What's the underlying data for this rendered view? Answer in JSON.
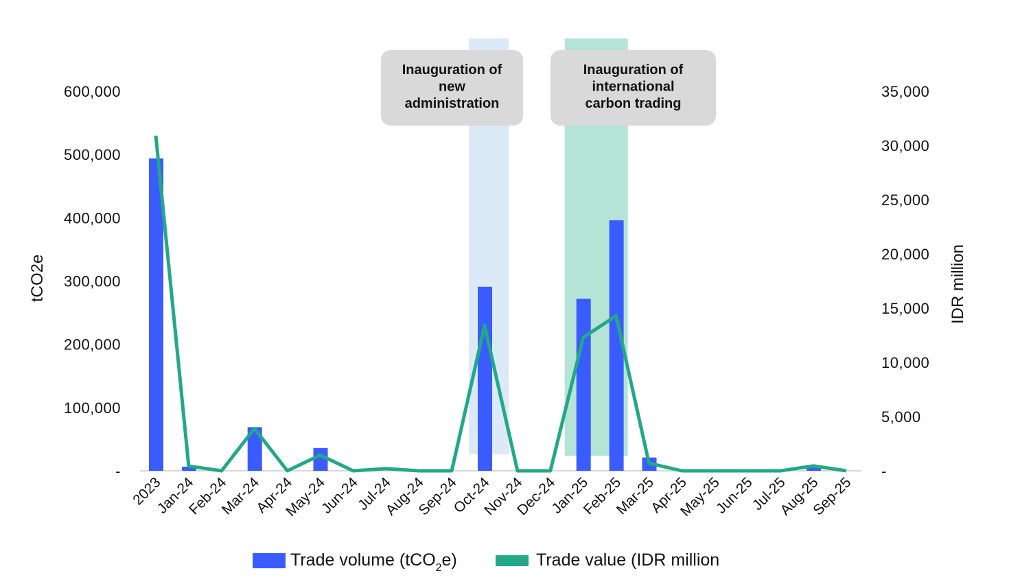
{
  "chart_data": {
    "type": "bar+line",
    "categories": [
      "2023",
      "Jan-24",
      "Feb-24",
      "Mar-24",
      "Apr-24",
      "May-24",
      "Jun-24",
      "Jul-24",
      "Aug-24",
      "Sep-24",
      "Oct-24",
      "Nov-24",
      "Dec-24",
      "Jan-25",
      "Feb-25",
      "Mar-25",
      "Apr-25",
      "May-25",
      "Jun-25",
      "Jul-25",
      "Aug-25",
      "Sep-25"
    ],
    "series": [
      {
        "name": "Trade volume (tCO2e)",
        "type": "bar",
        "axis": "left",
        "color": "#3a5cff",
        "values": [
          494000,
          6500,
          0,
          69000,
          0,
          36000,
          0,
          0,
          0,
          0,
          291000,
          0,
          0,
          272000,
          396000,
          21000,
          0,
          0,
          0,
          0,
          5000,
          0
        ]
      },
      {
        "name": "Trade value (IDR million",
        "type": "line",
        "axis": "right",
        "color": "#22a889",
        "values": [
          30900,
          440,
          0,
          3900,
          0,
          1450,
          0,
          200,
          0,
          0,
          13400,
          0,
          0,
          12300,
          14300,
          700,
          0,
          0,
          0,
          0,
          450,
          0
        ]
      }
    ],
    "ylabel_left": "tCO2e",
    "ylabel_right": "IDR million",
    "ylim_left": [
      0,
      600000
    ],
    "ylim_right": [
      0,
      35000
    ],
    "yticks_left": [
      "-",
      "100,000",
      "200,000",
      "300,000",
      "400,000",
      "500,000",
      "600,000"
    ],
    "yticks_right": [
      "-",
      "5,000",
      "10,000",
      "15,000",
      "20,000",
      "25,000",
      "30,000",
      "35,000"
    ],
    "legend": {
      "placement": "bottom",
      "items": [
        "Trade volume (tCO",
        "2",
        "e)",
        "Trade value (IDR million"
      ]
    },
    "annotations": [
      {
        "lines": [
          "Inauguration of",
          "new",
          "administration"
        ],
        "span": [
          "Oct-24",
          "Oct-24"
        ],
        "color": "#dce9f7"
      },
      {
        "lines": [
          "Inauguration of",
          "international",
          "carbon trading"
        ],
        "span": [
          "Jan-25",
          "Feb-25"
        ],
        "color": "#b5e3d5"
      }
    ]
  }
}
